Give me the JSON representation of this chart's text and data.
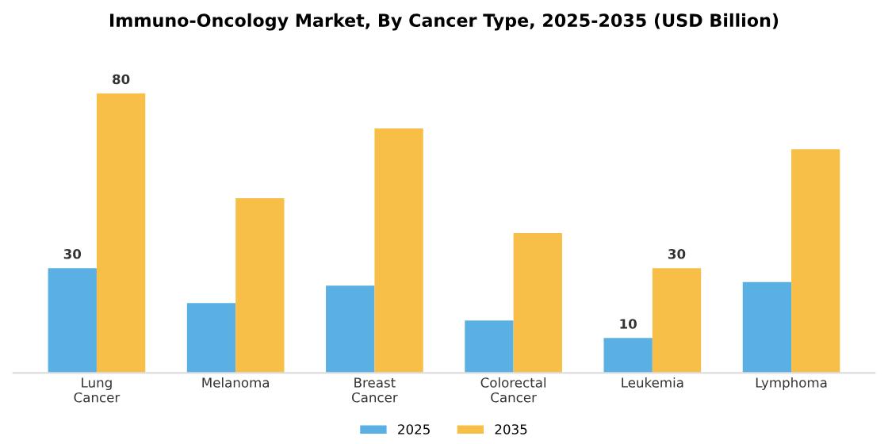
{
  "chart_data": {
    "type": "bar",
    "title": "Immuno-Oncology Market, By Cancer Type, 2025-2035 (USD Billion)",
    "categories": [
      "Lung\nCancer",
      "Melanoma",
      "Breast\nCancer",
      "Colorectal\nCancer",
      "Leukemia",
      "Lymphoma"
    ],
    "series": [
      {
        "name": "2025",
        "color": "#5ab0e2",
        "values": [
          30,
          20,
          25,
          15,
          10,
          26
        ],
        "value_labels": [
          "30",
          null,
          null,
          null,
          "10",
          null
        ]
      },
      {
        "name": "2035",
        "color": "#f7bf47",
        "values": [
          80,
          50,
          70,
          40,
          30,
          64
        ],
        "value_labels": [
          "80",
          null,
          null,
          null,
          "30",
          null
        ]
      }
    ],
    "legend": "bottom",
    "grid": false
  }
}
